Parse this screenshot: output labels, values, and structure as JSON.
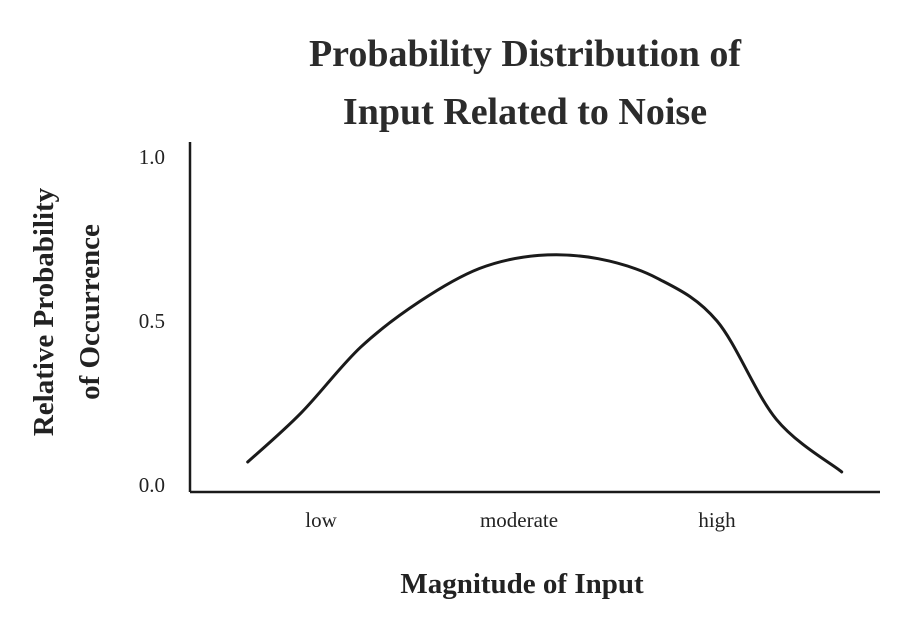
{
  "chart_data": {
    "type": "line",
    "title": "Probability Distribution of Input Related to Noise",
    "title_lines": [
      "Probability Distribution of",
      "Input Related to Noise"
    ],
    "xlabel": "Magnitude of Input",
    "ylabel": "Relative Probability of Occurrence",
    "ylabel_lines": [
      "Relative Probability",
      "of Occurrence"
    ],
    "x_categories": [
      "low",
      "moderate",
      "high"
    ],
    "xlim": [
      0,
      4
    ],
    "y_ticks": [
      "0.0",
      "0.5",
      "1.0"
    ],
    "y_tick_values": [
      0,
      0.5,
      1.0
    ],
    "ylim": [
      0,
      1.0
    ],
    "grid": false,
    "series": [
      {
        "x": [
          0.63,
          0.9,
          1.2,
          1.5,
          1.8,
          2.1,
          2.4,
          2.7,
          3.0,
          3.3,
          3.63
        ],
        "y": [
          0.07,
          0.22,
          0.42,
          0.56,
          0.66,
          0.7,
          0.69,
          0.63,
          0.5,
          0.2,
          0.04
        ]
      }
    ],
    "colors": {
      "line": "#1a1a1a",
      "text": "#222222"
    }
  }
}
